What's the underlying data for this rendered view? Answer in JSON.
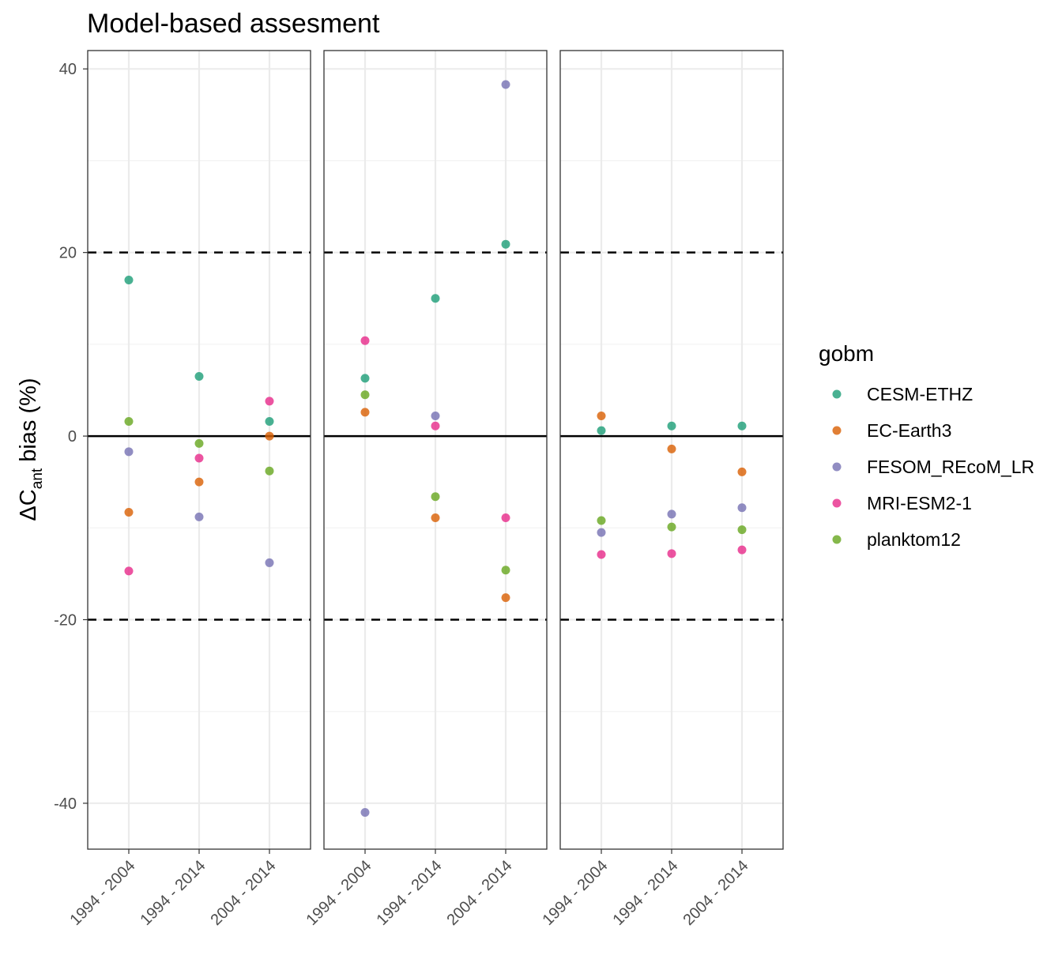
{
  "chart_data": {
    "type": "scatter",
    "title": "Model-based assesment",
    "ylabel": {
      "prefix": "ΔC",
      "subscript": "ant",
      "suffix": " bias (%)"
    },
    "xlabel": "",
    "ylim": [
      -45,
      42
    ],
    "y_ticks": [
      -40,
      -20,
      0,
      20,
      40
    ],
    "y_tick_labels": [
      "-40",
      "-20",
      "0",
      "20",
      "40"
    ],
    "categories": [
      "1994 - 2004",
      "1994 - 2014",
      "2004 - 2014"
    ],
    "reference_lines": [
      {
        "y": 0,
        "style": "solid"
      },
      {
        "y": 20,
        "style": "dashed"
      },
      {
        "y": -20,
        "style": "dashed"
      }
    ],
    "grid": true,
    "legend": {
      "title": "gobm",
      "placement": "right",
      "entries": [
        "CESM-ETHZ",
        "EC-Earth3",
        "FESOM_REcoM_LR",
        "MRI-ESM2-1",
        "planktom12"
      ]
    },
    "series_colors": {
      "CESM-ETHZ": "#1b9e77",
      "EC-Earth3": "#d95f02",
      "FESOM_REcoM_LR": "#7570b3",
      "MRI-ESM2-1": "#e7298a",
      "planktom12": "#66a61e"
    },
    "panels": [
      {
        "series": [
          {
            "name": "CESM-ETHZ",
            "values": [
              17.0,
              6.5,
              1.6
            ]
          },
          {
            "name": "EC-Earth3",
            "values": [
              -8.3,
              -5.0,
              0.0
            ]
          },
          {
            "name": "FESOM_REcoM_LR",
            "values": [
              -1.7,
              -8.8,
              -13.8
            ]
          },
          {
            "name": "MRI-ESM2-1",
            "values": [
              -14.7,
              -2.4,
              3.8
            ]
          },
          {
            "name": "planktom12",
            "values": [
              1.6,
              -0.8,
              -3.8
            ]
          }
        ]
      },
      {
        "series": [
          {
            "name": "CESM-ETHZ",
            "values": [
              6.3,
              15.0,
              20.9
            ]
          },
          {
            "name": "EC-Earth3",
            "values": [
              2.6,
              -8.9,
              -17.6
            ]
          },
          {
            "name": "FESOM_REcoM_LR",
            "values": [
              -41.0,
              2.2,
              38.3
            ]
          },
          {
            "name": "MRI-ESM2-1",
            "values": [
              10.4,
              1.1,
              -8.9
            ]
          },
          {
            "name": "planktom12",
            "values": [
              4.5,
              -6.6,
              -14.6
            ]
          }
        ]
      },
      {
        "series": [
          {
            "name": "CESM-ETHZ",
            "values": [
              0.6,
              1.1,
              1.1
            ]
          },
          {
            "name": "EC-Earth3",
            "values": [
              2.2,
              -1.4,
              -3.9
            ]
          },
          {
            "name": "FESOM_REcoM_LR",
            "values": [
              -10.5,
              -8.5,
              -7.8
            ]
          },
          {
            "name": "MRI-ESM2-1",
            "values": [
              -12.9,
              -12.8,
              -12.4
            ]
          },
          {
            "name": "planktom12",
            "values": [
              -9.2,
              -9.9,
              -10.2
            ]
          }
        ]
      }
    ]
  }
}
